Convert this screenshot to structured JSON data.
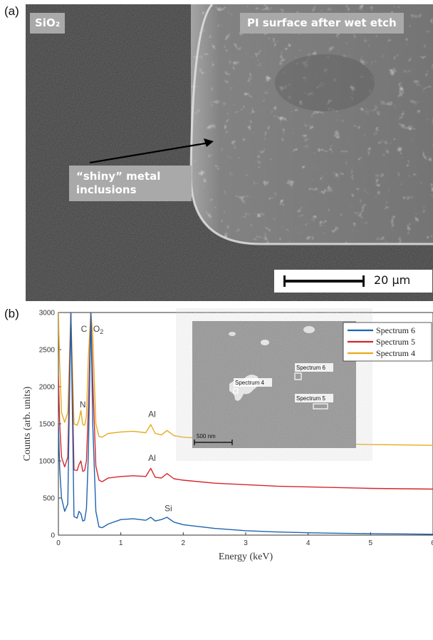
{
  "panel_a": {
    "label": "(a)",
    "sio2_label": "SiO₂",
    "pi_label": "PI surface after wet etch",
    "inclusion_label": "“shiny” metal inclusions",
    "scalebar_label": "20 µm"
  },
  "panel_b": {
    "label": "(b)"
  },
  "chart_data": {
    "type": "line",
    "xlabel": "Energy (keV)",
    "ylabel": "Counts (arb. units)",
    "xlim": [
      0,
      6
    ],
    "ylim": [
      0,
      3000
    ],
    "xticks": [
      "0",
      "1",
      "2",
      "3",
      "4",
      "5",
      "6"
    ],
    "yticks": [
      "0",
      "500",
      "1000",
      "1500",
      "2000",
      "2500",
      "3000"
    ],
    "legend_position": "top-right",
    "series": [
      {
        "name": "Spectrum 6",
        "color": "#1f63b0",
        "x": [
          0.0,
          0.02,
          0.05,
          0.1,
          0.15,
          0.2,
          0.25,
          0.3,
          0.33,
          0.36,
          0.39,
          0.42,
          0.45,
          0.48,
          0.52,
          0.55,
          0.6,
          0.65,
          0.7,
          0.8,
          1.0,
          1.2,
          1.4,
          1.48,
          1.55,
          1.65,
          1.74,
          1.85,
          2.0,
          2.5,
          3.0,
          3.5,
          4.0,
          4.5,
          5.0,
          5.5,
          6.0
        ],
        "y": [
          1500,
          900,
          500,
          320,
          420,
          3000,
          250,
          230,
          320,
          290,
          190,
          200,
          360,
          1100,
          3000,
          1500,
          320,
          110,
          100,
          150,
          210,
          220,
          200,
          240,
          190,
          210,
          240,
          175,
          140,
          90,
          60,
          42,
          32,
          25,
          20,
          16,
          12
        ]
      },
      {
        "name": "Spectrum 5",
        "color": "#d6262b",
        "x": [
          0.0,
          0.02,
          0.05,
          0.1,
          0.15,
          0.2,
          0.25,
          0.3,
          0.33,
          0.36,
          0.39,
          0.42,
          0.45,
          0.48,
          0.52,
          0.55,
          0.6,
          0.65,
          0.7,
          0.8,
          1.0,
          1.2,
          1.4,
          1.48,
          1.55,
          1.65,
          1.74,
          1.85,
          2.0,
          2.5,
          3.0,
          3.5,
          4.0,
          4.5,
          5.0,
          5.5,
          6.0
        ],
        "y": [
          2150,
          1500,
          1050,
          920,
          1050,
          3000,
          880,
          870,
          950,
          1000,
          860,
          870,
          1000,
          1700,
          3000,
          2100,
          930,
          740,
          720,
          770,
          790,
          800,
          790,
          900,
          780,
          770,
          830,
          760,
          740,
          700,
          680,
          660,
          650,
          640,
          630,
          625,
          620
        ]
      },
      {
        "name": "Spectrum 4",
        "color": "#e6ab1d",
        "x": [
          0.0,
          0.02,
          0.05,
          0.1,
          0.15,
          0.2,
          0.25,
          0.3,
          0.33,
          0.36,
          0.39,
          0.42,
          0.45,
          0.48,
          0.52,
          0.55,
          0.6,
          0.65,
          0.7,
          0.8,
          1.0,
          1.2,
          1.4,
          1.48,
          1.55,
          1.65,
          1.74,
          1.85,
          2.0,
          2.5,
          3.0,
          3.5,
          4.0,
          4.5,
          5.0,
          5.5,
          6.0
        ],
        "y": [
          3000,
          2300,
          1650,
          1520,
          1650,
          3000,
          1500,
          1480,
          1550,
          1680,
          1490,
          1480,
          1600,
          2400,
          3000,
          2700,
          1500,
          1330,
          1320,
          1370,
          1390,
          1400,
          1380,
          1490,
          1370,
          1350,
          1410,
          1340,
          1320,
          1290,
          1270,
          1250,
          1240,
          1230,
          1220,
          1215,
          1210
        ]
      }
    ],
    "annotations": [
      {
        "text": "C",
        "x": 0.41,
        "y": 2740
      },
      {
        "text": "O",
        "sub": "2",
        "x": 0.64,
        "y": 2740
      },
      {
        "text": "N",
        "x": 0.39,
        "y": 1720
      },
      {
        "text": "Al",
        "x": 1.5,
        "y": 1590
      },
      {
        "text": "Al",
        "x": 1.5,
        "y": 1000
      },
      {
        "text": "Si",
        "x": 1.76,
        "y": 320
      }
    ],
    "inset": {
      "spectrum_labels": [
        "Spectrum 6",
        "Spectrum 4",
        "Spectrum 5"
      ],
      "scale_label": "500 nm"
    }
  }
}
